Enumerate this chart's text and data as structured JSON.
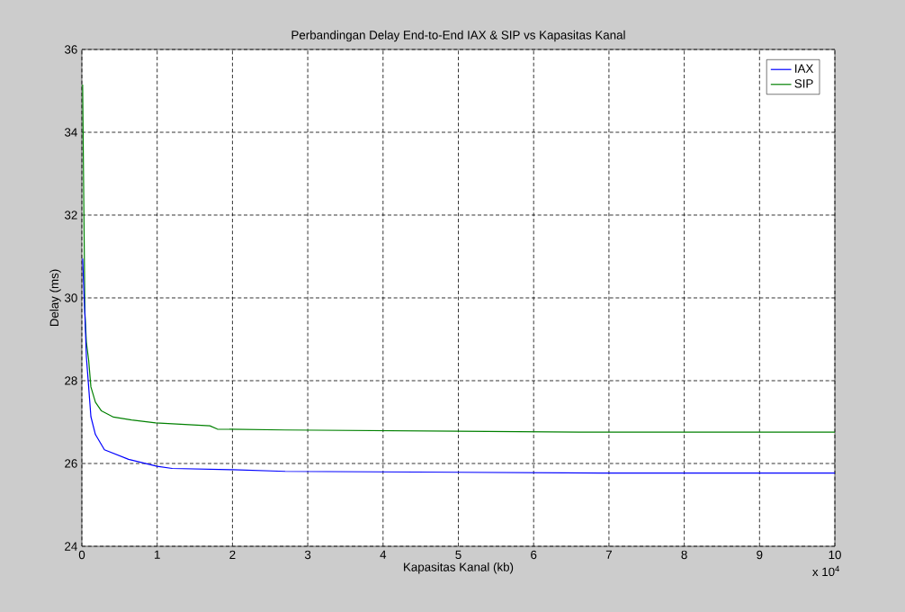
{
  "chart_data": {
    "type": "line",
    "title": "Perbandingan Delay End-to-End IAX & SIP vs Kapasitas Kanal",
    "xlabel": "Kapasitas Kanal (kb)",
    "ylabel": "Delay (ms)",
    "annotations": [
      "x 10$^{4}$"
    ],
    "xlim": [
      0,
      10
    ],
    "ylim": [
      24,
      36
    ],
    "xticks": [
      0,
      1,
      2,
      3,
      4,
      5,
      6,
      7,
      8,
      9,
      10
    ],
    "yticks": [
      24,
      26,
      28,
      30,
      32,
      34,
      36
    ],
    "grid": true,
    "legend": "top right",
    "marker": "none",
    "line_style": "solid",
    "series": [
      {
        "name": "IAX",
        "color": "#0000ff",
        "x": [
          0.01,
          0.03,
          0.04,
          0.06,
          0.09,
          0.12,
          0.18,
          0.3,
          0.62,
          1.0,
          1.2,
          2.0,
          2.7,
          6.9,
          10
        ],
        "values": [
          30.95,
          30.0,
          29.6,
          28.57,
          27.85,
          27.13,
          26.7,
          26.33,
          26.1,
          25.93,
          25.88,
          25.85,
          25.81,
          25.77,
          25.77
        ]
      },
      {
        "name": "SIP",
        "color": "#008000",
        "x": [
          0.01,
          0.04,
          0.06,
          0.09,
          0.12,
          0.18,
          0.26,
          0.42,
          0.66,
          0.98,
          1.7,
          1.8,
          2.7,
          6.6,
          10
        ],
        "values": [
          35.15,
          29.66,
          28.93,
          28.5,
          27.85,
          27.48,
          27.27,
          27.12,
          27.05,
          26.98,
          26.91,
          26.83,
          26.81,
          26.76,
          26.76
        ]
      }
    ]
  }
}
